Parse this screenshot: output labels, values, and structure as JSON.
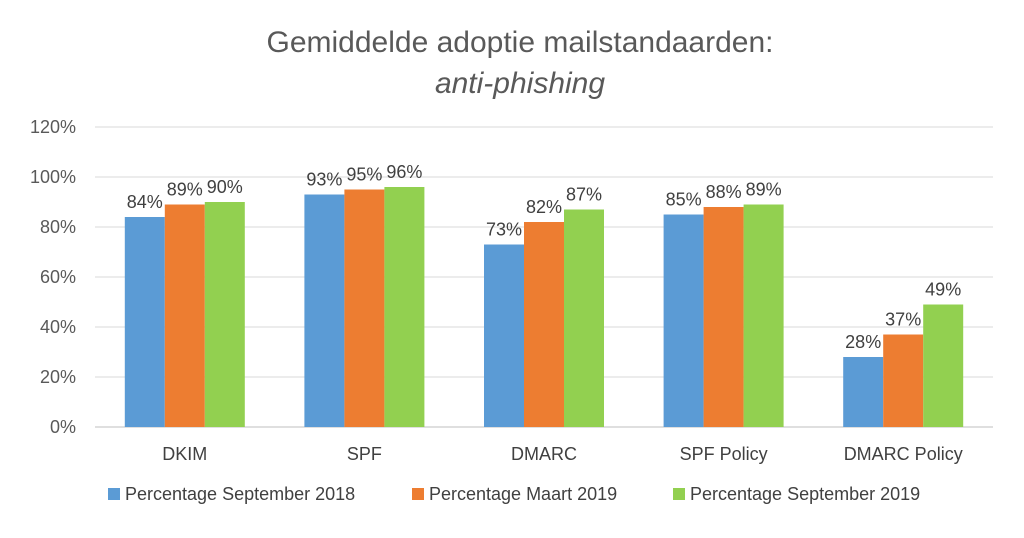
{
  "chart_data": {
    "type": "bar",
    "title": "Gemiddelde adoptie mailstandaarden:",
    "subtitle": "anti-phishing",
    "xlabel": "",
    "ylabel": "",
    "ylim": [
      0,
      120
    ],
    "yticks": [
      "0%",
      "20%",
      "40%",
      "60%",
      "80%",
      "100%",
      "120%"
    ],
    "ytick_values": [
      0,
      20,
      40,
      60,
      80,
      100,
      120
    ],
    "categories": [
      "DKIM",
      "SPF",
      "DMARC",
      "SPF Policy",
      "DMARC Policy"
    ],
    "series": [
      {
        "name": "Percentage September 2018",
        "color": "#5b9bd5",
        "values": [
          84,
          93,
          73,
          85,
          28
        ],
        "labels": [
          "84%",
          "93%",
          "73%",
          "85%",
          "28%"
        ]
      },
      {
        "name": "Percentage Maart 2019",
        "color": "#ed7d31",
        "values": [
          89,
          95,
          82,
          88,
          37
        ],
        "labels": [
          "89%",
          "95%",
          "82%",
          "88%",
          "37%"
        ]
      },
      {
        "name": "Percentage September 2019",
        "color": "#92d050",
        "values": [
          90,
          96,
          87,
          89,
          49
        ],
        "labels": [
          "90%",
          "96%",
          "87%",
          "89%",
          "49%"
        ]
      }
    ],
    "grid": true,
    "legend_position": "bottom"
  }
}
